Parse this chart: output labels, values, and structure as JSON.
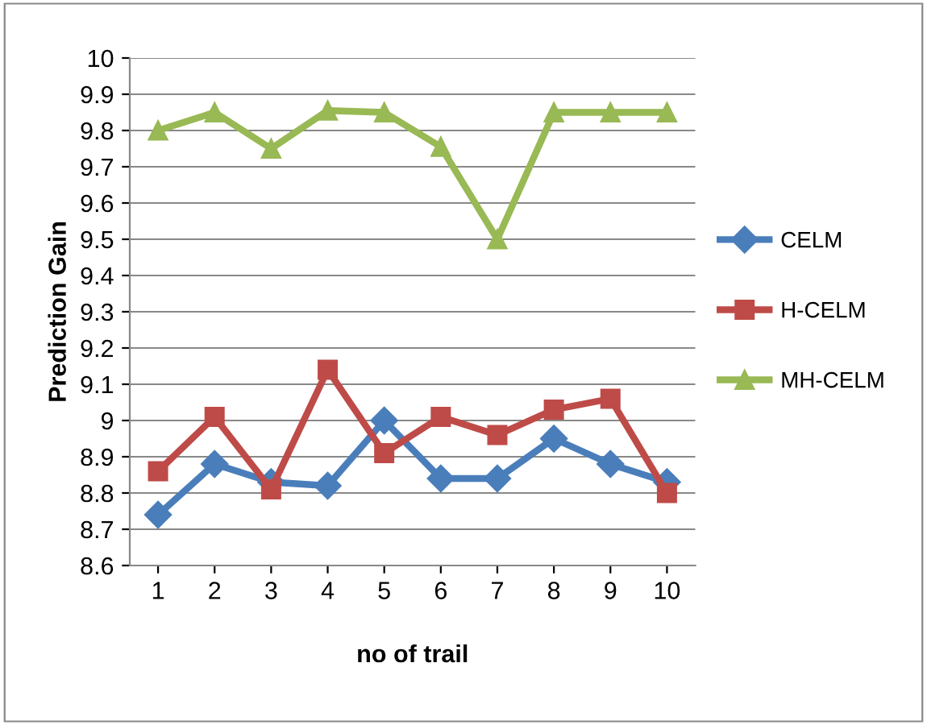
{
  "chart_data": {
    "type": "line",
    "xlabel": "no of trail",
    "ylabel": "Prediction Gain",
    "categories": [
      "1",
      "2",
      "3",
      "4",
      "5",
      "6",
      "7",
      "8",
      "9",
      "10"
    ],
    "series": [
      {
        "name": "CELM",
        "color": "#4a7ebb",
        "marker": "diamond",
        "values": [
          8.74,
          8.88,
          8.83,
          8.82,
          9.0,
          8.84,
          8.84,
          8.95,
          8.88,
          8.83
        ]
      },
      {
        "name": "H-CELM",
        "color": "#be4b48",
        "marker": "square",
        "values": [
          8.86,
          9.01,
          8.81,
          9.14,
          8.91,
          9.01,
          8.96,
          9.03,
          9.06,
          8.8
        ]
      },
      {
        "name": "MH-CELM",
        "color": "#98b954",
        "marker": "triangle",
        "values": [
          9.8,
          9.85,
          9.75,
          9.855,
          9.85,
          9.755,
          9.5,
          9.85,
          9.85,
          9.85
        ]
      }
    ],
    "ylim": [
      8.6,
      10
    ],
    "yticks": [
      8.6,
      8.7,
      8.8,
      8.9,
      9,
      9.1,
      9.2,
      9.3,
      9.4,
      9.5,
      9.6,
      9.7,
      9.8,
      9.9,
      10
    ],
    "grid": "y",
    "legend": "right",
    "line_style": "solid"
  }
}
